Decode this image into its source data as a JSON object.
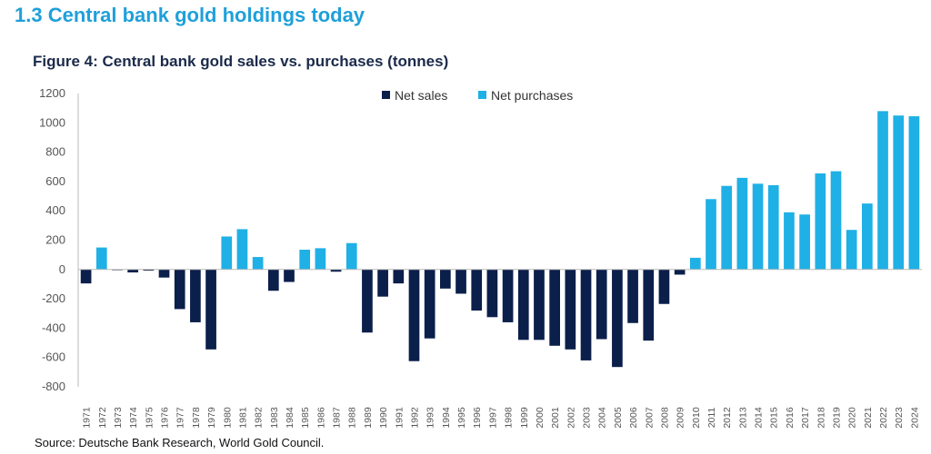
{
  "page": {
    "section_title": "1.3 Central bank gold holdings today",
    "figure_title": "Figure 4: Central bank gold sales vs. purchases (tonnes)",
    "source": "Source: Deutsche Bank Research, World Gold Council."
  },
  "colors": {
    "net_sales": "#0b1f4b",
    "net_purchases": "#1fb0e6",
    "axis": "#bbbbbb",
    "section_title": "#1fa0da"
  },
  "chart_data": {
    "type": "bar",
    "title": "Figure 4: Central bank gold sales vs. purchases (tonnes)",
    "xlabel": "",
    "ylabel": "",
    "ylim": [
      -800,
      1200
    ],
    "yticks": [
      1200,
      1000,
      800,
      600,
      400,
      200,
      0,
      -200,
      -400,
      -600,
      -800
    ],
    "grid": false,
    "legend_position": "top-center",
    "legend": [
      {
        "name": "Net sales",
        "color": "#0b1f4b"
      },
      {
        "name": "Net purchases",
        "color": "#1fb0e6"
      }
    ],
    "categories": [
      "1971",
      "1972",
      "1973",
      "1974",
      "1975",
      "1976",
      "1977",
      "1978",
      "1979",
      "1980",
      "1981",
      "1982",
      "1983",
      "1984",
      "1985",
      "1986",
      "1987",
      "1988",
      "1989",
      "1990",
      "1991",
      "1992",
      "1993",
      "1994",
      "1995",
      "1996",
      "1997",
      "1998",
      "1999",
      "2000",
      "2001",
      "2002",
      "2003",
      "2004",
      "2005",
      "2006",
      "2007",
      "2008",
      "2009",
      "2010",
      "2011",
      "2012",
      "2013",
      "2014",
      "2015",
      "2016",
      "2017",
      "2018",
      "2019",
      "2020",
      "2021",
      "2022",
      "2023",
      "2024"
    ],
    "values": [
      -95,
      150,
      -5,
      -20,
      -8,
      -55,
      -270,
      -360,
      -545,
      225,
      275,
      85,
      -145,
      -85,
      135,
      145,
      -15,
      180,
      -430,
      -185,
      -95,
      -625,
      -470,
      -130,
      -165,
      -280,
      -325,
      -360,
      -480,
      -480,
      -520,
      -545,
      -620,
      -475,
      -665,
      -365,
      -485,
      -235,
      -35,
      80,
      480,
      570,
      625,
      585,
      575,
      390,
      375,
      655,
      670,
      270,
      450,
      1080,
      1050,
      1045
    ]
  }
}
